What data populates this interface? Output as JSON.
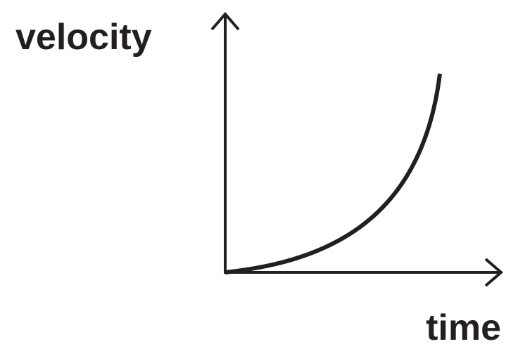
{
  "axes": {
    "y_label": "velocity",
    "x_label": "time"
  }
}
